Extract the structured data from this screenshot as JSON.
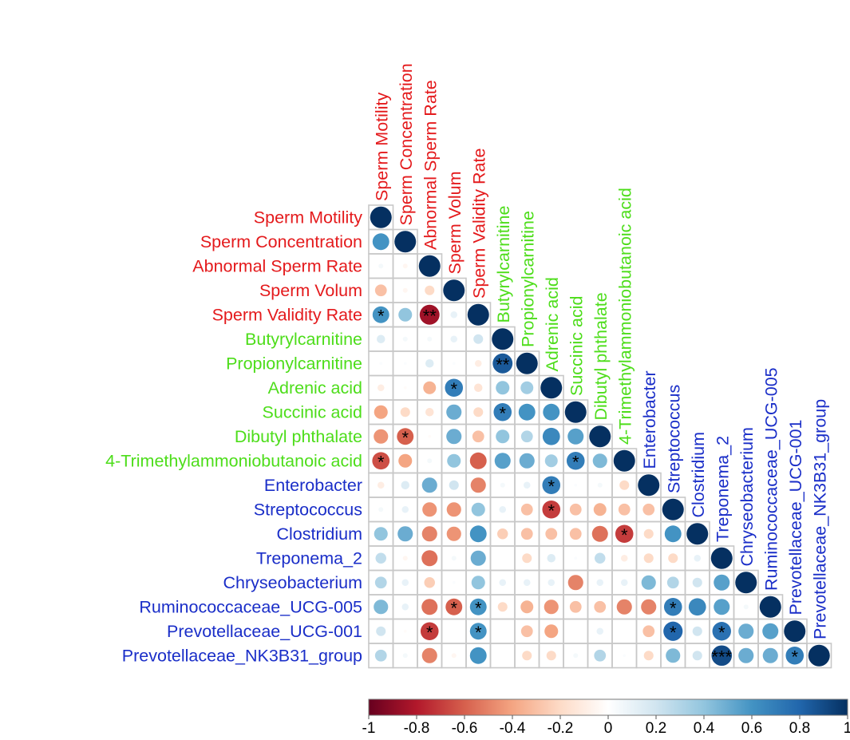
{
  "chart_data": {
    "type": "heatmap",
    "title": "",
    "variables": [
      {
        "label": "Sperm Motility",
        "group": "sperm"
      },
      {
        "label": "Sperm Concentration",
        "group": "sperm"
      },
      {
        "label": "Abnormal Sperm Rate",
        "group": "sperm"
      },
      {
        "label": "Sperm Volum",
        "group": "sperm"
      },
      {
        "label": "Sperm Validity Rate",
        "group": "sperm"
      },
      {
        "label": "Butyrylcarnitine",
        "group": "metabolite"
      },
      {
        "label": "Propionylcarnitine",
        "group": "metabolite"
      },
      {
        "label": "Adrenic acid",
        "group": "metabolite"
      },
      {
        "label": "Succinic acid",
        "group": "metabolite"
      },
      {
        "label": "Dibutyl phthalate",
        "group": "metabolite"
      },
      {
        "label": "4-Trimethylammoniobutanoic acid",
        "group": "metabolite"
      },
      {
        "label": "Enterobacter",
        "group": "microbe"
      },
      {
        "label": "Streptococcus",
        "group": "microbe"
      },
      {
        "label": "Clostridium",
        "group": "microbe"
      },
      {
        "label": "Treponema_2",
        "group": "microbe"
      },
      {
        "label": "Chryseobacterium",
        "group": "microbe"
      },
      {
        "label": "Ruminococcaceae_UCG-005",
        "group": "microbe"
      },
      {
        "label": "Prevotellaceae_UCG-001",
        "group": "microbe"
      },
      {
        "label": "Prevotellaceae_NK3B31_group",
        "group": "microbe"
      }
    ],
    "group_colors": {
      "sperm": "#e41a1c",
      "metabolite": "#4ddd1a",
      "microbe": "#1a2ec8"
    },
    "correlations": [
      [
        1
      ],
      [
        0.6,
        1
      ],
      [
        0.05,
        -0.05,
        1
      ],
      [
        -0.3,
        -0.05,
        -0.2,
        1
      ],
      [
        0.6,
        0.4,
        -0.85,
        0.1,
        1
      ],
      [
        0.15,
        0.05,
        0.05,
        0.1,
        0.2,
        1
      ],
      [
        0.02,
        0.02,
        0.15,
        0.02,
        -0.1,
        0.85,
        1
      ],
      [
        -0.1,
        -0.02,
        -0.35,
        0.7,
        -0.15,
        0.4,
        0.35,
        1
      ],
      [
        -0.4,
        -0.2,
        -0.15,
        0.5,
        -0.2,
        0.7,
        0.6,
        0.6,
        1
      ],
      [
        -0.45,
        -0.6,
        -0.02,
        0.5,
        -0.3,
        0.4,
        0.3,
        0.65,
        0.55,
        1
      ],
      [
        -0.65,
        -0.4,
        0.05,
        0.4,
        -0.6,
        0.55,
        0.5,
        0.35,
        0.7,
        0.45,
        1
      ],
      [
        -0.1,
        0.15,
        0.5,
        0.2,
        -0.5,
        0.05,
        0.1,
        0.7,
        0.02,
        0.05,
        -0.2,
        1
      ],
      [
        0.05,
        0.1,
        -0.45,
        -0.45,
        0.4,
        0.1,
        -0.3,
        -0.7,
        -0.3,
        -0.35,
        -0.3,
        -0.3,
        1
      ],
      [
        0.4,
        0.5,
        -0.5,
        -0.45,
        0.6,
        -0.25,
        -0.3,
        -0.3,
        -0.3,
        -0.55,
        -0.7,
        -0.2,
        0.6,
        1
      ],
      [
        0.25,
        -0.05,
        -0.55,
        0.05,
        0.5,
        0,
        -0.2,
        0.15,
        0.02,
        0.25,
        -0.1,
        -0.2,
        -0.2,
        0.1,
        1
      ],
      [
        0.3,
        0.1,
        -0.25,
        0.02,
        0.4,
        0.1,
        0.1,
        0.1,
        -0.5,
        0.1,
        0.1,
        0.45,
        0.3,
        0.2,
        0.55,
        1
      ],
      [
        0.45,
        0.1,
        -0.55,
        -0.6,
        0.6,
        -0.2,
        -0.35,
        -0.45,
        -0.3,
        -0.3,
        -0.5,
        -0.5,
        0.7,
        0.65,
        0.55,
        0.05,
        1
      ],
      [
        0.2,
        -0.02,
        -0.7,
        0,
        0.6,
        0,
        -0.3,
        -0.4,
        0,
        0.1,
        0,
        -0.3,
        0.8,
        0.2,
        0.75,
        0.5,
        0.55,
        1
      ],
      [
        0.3,
        0.05,
        -0.5,
        -0.05,
        0.6,
        0,
        -0.2,
        -0.2,
        0.05,
        0.3,
        0.02,
        -0.2,
        0.45,
        0.2,
        0.9,
        0.5,
        0.5,
        0.7,
        1
      ]
    ],
    "significance": [
      {
        "row": 4,
        "col": 0,
        "label": "*"
      },
      {
        "row": 4,
        "col": 2,
        "label": "**"
      },
      {
        "row": 6,
        "col": 5,
        "label": "**"
      },
      {
        "row": 7,
        "col": 3,
        "label": "*"
      },
      {
        "row": 8,
        "col": 5,
        "label": "*"
      },
      {
        "row": 9,
        "col": 1,
        "label": "*"
      },
      {
        "row": 10,
        "col": 0,
        "label": "*"
      },
      {
        "row": 10,
        "col": 8,
        "label": "*"
      },
      {
        "row": 11,
        "col": 7,
        "label": "*"
      },
      {
        "row": 12,
        "col": 7,
        "label": "*"
      },
      {
        "row": 13,
        "col": 10,
        "label": "*"
      },
      {
        "row": 16,
        "col": 3,
        "label": "*"
      },
      {
        "row": 16,
        "col": 4,
        "label": "*"
      },
      {
        "row": 16,
        "col": 12,
        "label": "*"
      },
      {
        "row": 17,
        "col": 2,
        "label": "*"
      },
      {
        "row": 17,
        "col": 4,
        "label": "*"
      },
      {
        "row": 17,
        "col": 12,
        "label": "*"
      },
      {
        "row": 17,
        "col": 14,
        "label": "*"
      },
      {
        "row": 18,
        "col": 14,
        "label": "***"
      },
      {
        "row": 18,
        "col": 17,
        "label": "*"
      }
    ],
    "colorbar": {
      "range": [
        -1,
        1
      ],
      "ticks": [
        "-1",
        "-0.8",
        "-0.6",
        "-0.4",
        "-0.2",
        "0",
        "0.2",
        "0.4",
        "0.6",
        "0.8",
        "1"
      ],
      "colors": [
        "#67001f",
        "#b2182b",
        "#d6604d",
        "#f4a582",
        "#fddbc7",
        "#ffffff",
        "#d1e5f0",
        "#92c5de",
        "#4393c3",
        "#2166ac",
        "#053061"
      ]
    },
    "shape": "lower-triangle",
    "grid": true
  }
}
